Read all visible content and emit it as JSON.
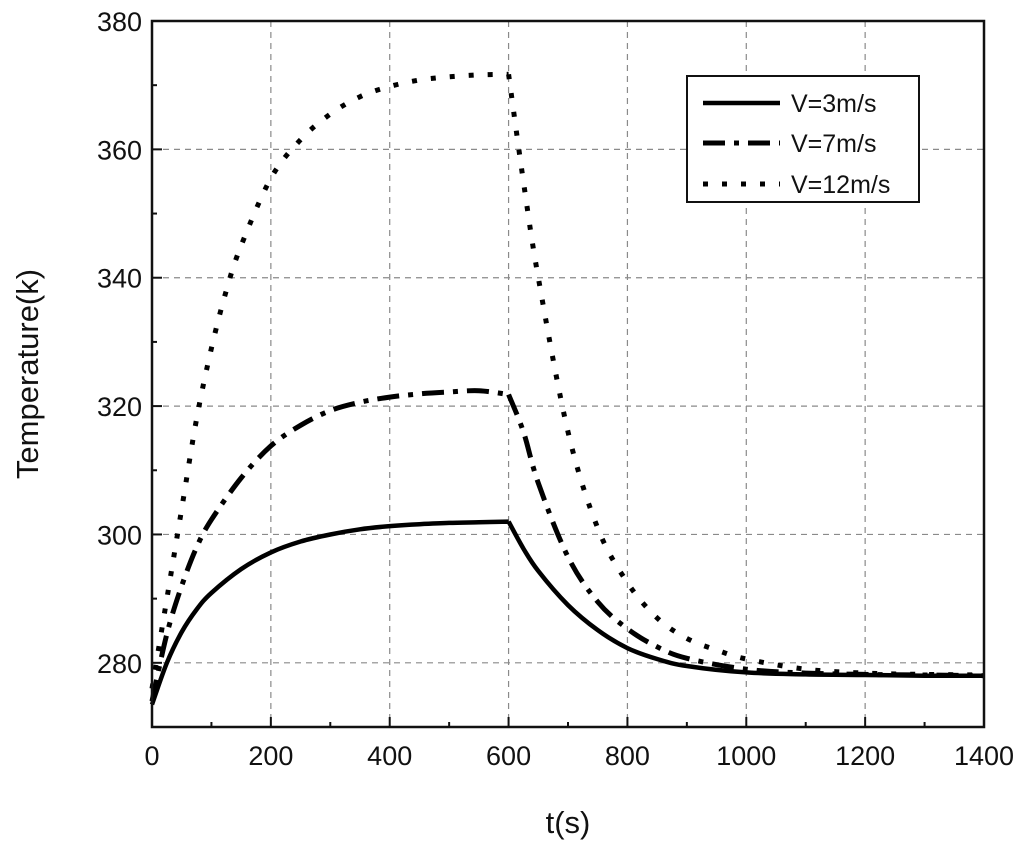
{
  "chart_data": {
    "type": "line",
    "title": "",
    "xlabel": "t(s)",
    "ylabel": "Temperature(k)",
    "xlim": [
      0,
      1400
    ],
    "ylim": [
      270,
      380
    ],
    "xticks": [
      0,
      200,
      400,
      600,
      800,
      1000,
      1200,
      1400
    ],
    "yticks": [
      280,
      300,
      320,
      340,
      360,
      380
    ],
    "grid": true,
    "legend_position": "top-right",
    "series": [
      {
        "name": "V=3m/s",
        "style": "solid",
        "color": "#000000",
        "x": [
          0,
          25,
          50,
          75,
          100,
          150,
          200,
          250,
          300,
          350,
          400,
          450,
          500,
          550,
          600,
          625,
          650,
          700,
          750,
          800,
          850,
          900,
          1000,
          1100,
          1200,
          1300,
          1400
        ],
        "y": [
          273.5,
          280.0,
          284.8,
          288.3,
          290.9,
          294.6,
          297.2,
          298.9,
          300.0,
          300.8,
          301.3,
          301.6,
          301.8,
          301.9,
          302.0,
          297.8,
          294.3,
          289.0,
          285.1,
          282.3,
          280.6,
          279.5,
          278.5,
          278.2,
          278.1,
          278.0,
          278.0
        ]
      },
      {
        "name": "V=7m/s",
        "style": "dash-dot",
        "color": "#000000",
        "x": [
          0,
          25,
          50,
          75,
          100,
          150,
          200,
          250,
          300,
          350,
          400,
          450,
          500,
          550,
          600,
          625,
          650,
          700,
          750,
          800,
          850,
          900,
          1000,
          1100,
          1200,
          1300,
          1400
        ],
        "y": [
          274.0,
          284.5,
          292.0,
          298.0,
          302.3,
          308.8,
          313.8,
          317.0,
          319.3,
          320.6,
          321.4,
          321.9,
          322.2,
          322.4,
          321.8,
          316.0,
          308.0,
          296.5,
          289.5,
          285.3,
          282.5,
          280.7,
          279.0,
          278.4,
          278.2,
          278.1,
          278.0
        ]
      },
      {
        "name": "V=12m/s",
        "style": "dotted",
        "color": "#000000",
        "x": [
          0,
          25,
          50,
          75,
          100,
          125,
          150,
          200,
          250,
          300,
          350,
          400,
          450,
          500,
          550,
          600,
          625,
          650,
          700,
          750,
          800,
          850,
          900,
          950,
          1000,
          1100,
          1200,
          1300,
          1400
        ],
        "y": [
          276.0,
          290.0,
          304.0,
          318.0,
          329.0,
          338.0,
          345.0,
          355.5,
          361.5,
          365.5,
          368.2,
          369.8,
          370.8,
          371.3,
          371.6,
          371.7,
          355.0,
          340.0,
          316.0,
          301.0,
          292.5,
          287.0,
          283.8,
          282.0,
          280.6,
          279.0,
          278.4,
          278.2,
          278.1
        ]
      }
    ]
  }
}
